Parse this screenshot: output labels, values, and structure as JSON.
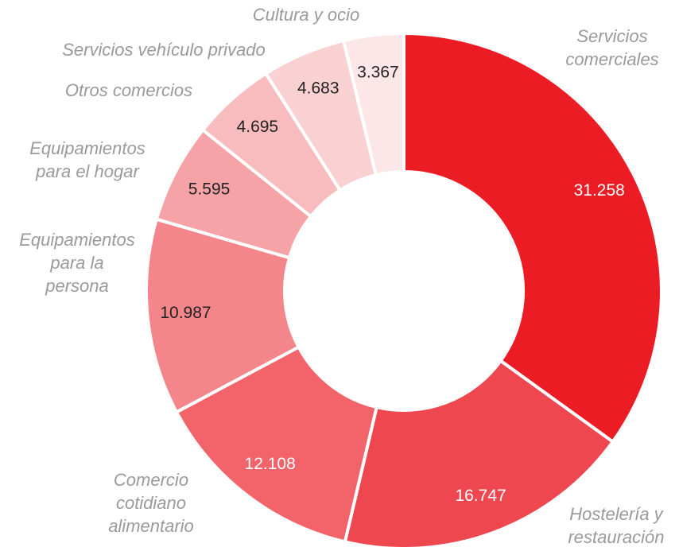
{
  "chart_data": {
    "type": "donut",
    "categories": [
      "Servicios\ncomerciales",
      "Hostelería y\nrestauración",
      "Comercio\ncotidiano\nalimentario",
      "Equipamientos\npara la\npersona",
      "Equipamientos\npara el hogar",
      "Otros comercios",
      "Servicios vehículo privado",
      "Cultura y ocio"
    ],
    "values": [
      31258,
      16747,
      12108,
      10987,
      5595,
      4695,
      4683,
      3367
    ],
    "value_labels": [
      "31.258",
      "16.747",
      "12.108",
      "10.987",
      "5.595",
      "4.695",
      "4.683",
      "3.367"
    ],
    "colors": [
      "#ec1c24",
      "#ef474f",
      "#f2636a",
      "#f4858a",
      "#f6a3a7",
      "#f8bcbf",
      "#fad1d3",
      "#fde6e7"
    ],
    "label_colors": [
      "#ffffff",
      "#ffffff",
      "#ffffff",
      "#222222",
      "#222222",
      "#222222",
      "#222222",
      "#222222"
    ]
  }
}
